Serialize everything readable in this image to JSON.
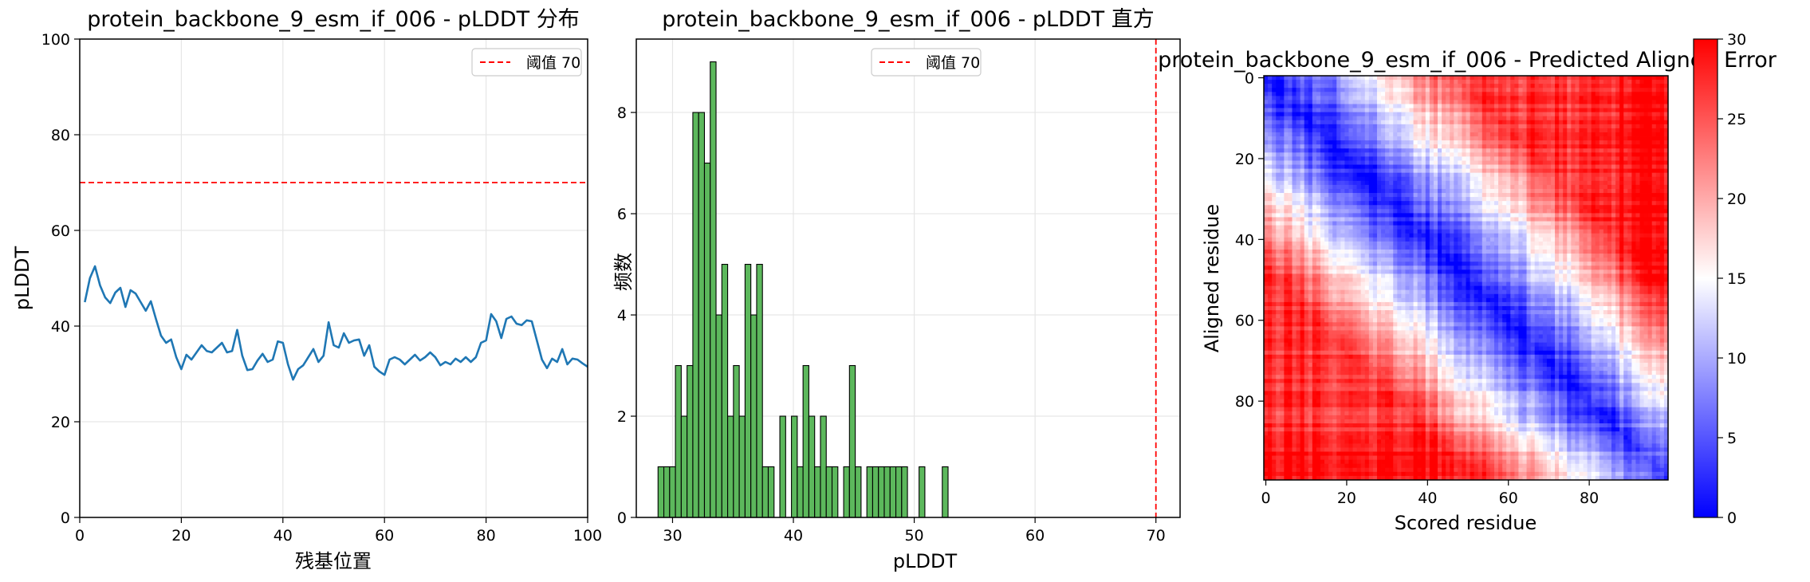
{
  "chart_data": [
    {
      "type": "line",
      "title": "protein_backbone_9_esm_if_006 - pLDDT 分布",
      "xlabel": "残基位置",
      "ylabel": "pLDDT",
      "xlim": [
        0,
        100
      ],
      "ylim": [
        0,
        100
      ],
      "xticks": [
        "0",
        "20",
        "40",
        "60",
        "80",
        "100"
      ],
      "yticks": [
        "0",
        "20",
        "40",
        "60",
        "80",
        "100"
      ],
      "grid": true,
      "legend": {
        "placement": "top-right",
        "entries": [
          "阈值 70"
        ]
      },
      "threshold": {
        "value": 70,
        "label": "阈值 70",
        "color": "#ff0000",
        "style": "dashed"
      },
      "line_color": "#1f77b4",
      "series": [
        {
          "x": [
            1,
            2,
            3,
            4,
            5,
            6,
            7,
            8,
            9,
            10,
            11,
            12,
            13,
            14,
            15,
            16,
            17,
            18,
            19,
            20,
            21,
            22,
            23,
            24,
            25,
            26,
            27,
            28,
            29,
            30,
            31,
            32,
            33,
            34,
            35,
            36,
            37,
            38,
            39,
            40,
            41,
            42,
            43,
            44,
            45,
            46,
            47,
            48,
            49,
            50,
            51,
            52,
            53,
            54,
            55,
            56,
            57,
            58,
            59,
            60,
            61,
            62,
            63,
            64,
            65,
            66,
            67,
            68,
            69,
            70,
            71,
            72,
            73,
            74,
            75,
            76,
            77,
            78,
            79,
            80,
            81,
            82,
            83,
            84,
            85,
            86,
            87,
            88,
            89,
            90,
            91,
            92,
            93,
            94,
            95,
            96,
            97,
            98,
            99,
            100
          ],
          "y": [
            45,
            50,
            52.5,
            48.5,
            46,
            44.8,
            47,
            48,
            44,
            47.5,
            46.8,
            45,
            43.2,
            45.2,
            41.5,
            38,
            36.5,
            37.2,
            33.5,
            31,
            34,
            33,
            34.5,
            36,
            34.8,
            34.5,
            35.5,
            36.5,
            34.5,
            34.8,
            39.2,
            33.8,
            30.8,
            31,
            32.8,
            34.2,
            32.5,
            33,
            36.8,
            36.5,
            32,
            28.8,
            31,
            31.8,
            33.5,
            35.2,
            32.5,
            33.8,
            40.8,
            36,
            35.5,
            38.5,
            36.5,
            37,
            37.2,
            33.8,
            36,
            31.5,
            30.5,
            29.8,
            33,
            33.5,
            33,
            32,
            33,
            34,
            32.8,
            33.5,
            34.5,
            33.5,
            31.8,
            32.5,
            32,
            33.2,
            32.5,
            33.5,
            32.5,
            33.5,
            36.5,
            37,
            42.5,
            41,
            37.5,
            41.5,
            42,
            40.5,
            40.2,
            41.2,
            41,
            37,
            33,
            31.2,
            33.2,
            32.5,
            35.2,
            32,
            33.2,
            33,
            32.2,
            31.5
          ]
        }
      ]
    },
    {
      "type": "bar",
      "title": "protein_backbone_9_esm_if_006 - pLDDT 直方",
      "xlabel": "pLDDT",
      "ylabel": "频数",
      "xlim": [
        27,
        72
      ],
      "ylim": [
        0,
        9.45
      ],
      "xticks": [
        "30",
        "40",
        "50",
        "60",
        "70"
      ],
      "yticks": [
        "0",
        "2",
        "4",
        "6",
        "8"
      ],
      "grid": true,
      "legend": {
        "placement": "top-center",
        "entries": [
          "阈值 70"
        ]
      },
      "threshold": {
        "value": 70,
        "label": "阈值 70",
        "color": "#ff0000",
        "style": "dashed"
      },
      "bar_color": "#5cb85c",
      "bin_width": 0.48,
      "bin_starts": [
        28.8,
        29.28,
        29.76,
        30.24,
        30.72,
        31.2,
        31.68,
        32.16,
        32.64,
        33.12,
        33.6,
        34.08,
        34.56,
        35.04,
        35.52,
        36.0,
        36.48,
        36.96,
        37.44,
        37.92,
        38.4,
        38.88,
        39.36,
        39.84,
        40.32,
        40.8,
        41.28,
        41.76,
        42.24,
        42.72,
        43.2,
        43.68,
        44.16,
        44.64,
        45.12,
        45.6,
        46.08,
        46.56,
        47.04,
        47.52,
        48.0,
        48.48,
        48.96,
        49.44,
        49.92,
        50.4,
        50.88,
        51.36,
        51.84,
        52.32
      ],
      "values": [
        1,
        1,
        1,
        3,
        2,
        3,
        8,
        8,
        7,
        9,
        4,
        5,
        2,
        3,
        2,
        5,
        4,
        5,
        1,
        1,
        0,
        2,
        0,
        2,
        1,
        3,
        2,
        1,
        2,
        1,
        1,
        0,
        1,
        3,
        1,
        0,
        1,
        1,
        1,
        1,
        1,
        1,
        1,
        0,
        0,
        1,
        0,
        0,
        0,
        1
      ]
    },
    {
      "type": "heatmap",
      "title": "protein_backbone_9_esm_if_006 - Predicted Aligned Error",
      "xlabel": "Scored residue",
      "ylabel": "Aligned residue",
      "n_residues": 100,
      "xticks": [
        "0",
        "20",
        "40",
        "60",
        "80"
      ],
      "yticks": [
        "0",
        "20",
        "40",
        "60",
        "80"
      ],
      "colormap": "bwr",
      "colorbar": {
        "min": 0,
        "max": 30,
        "ticks": [
          "0",
          "5",
          "10",
          "15",
          "20",
          "25",
          "30"
        ]
      }
    }
  ]
}
